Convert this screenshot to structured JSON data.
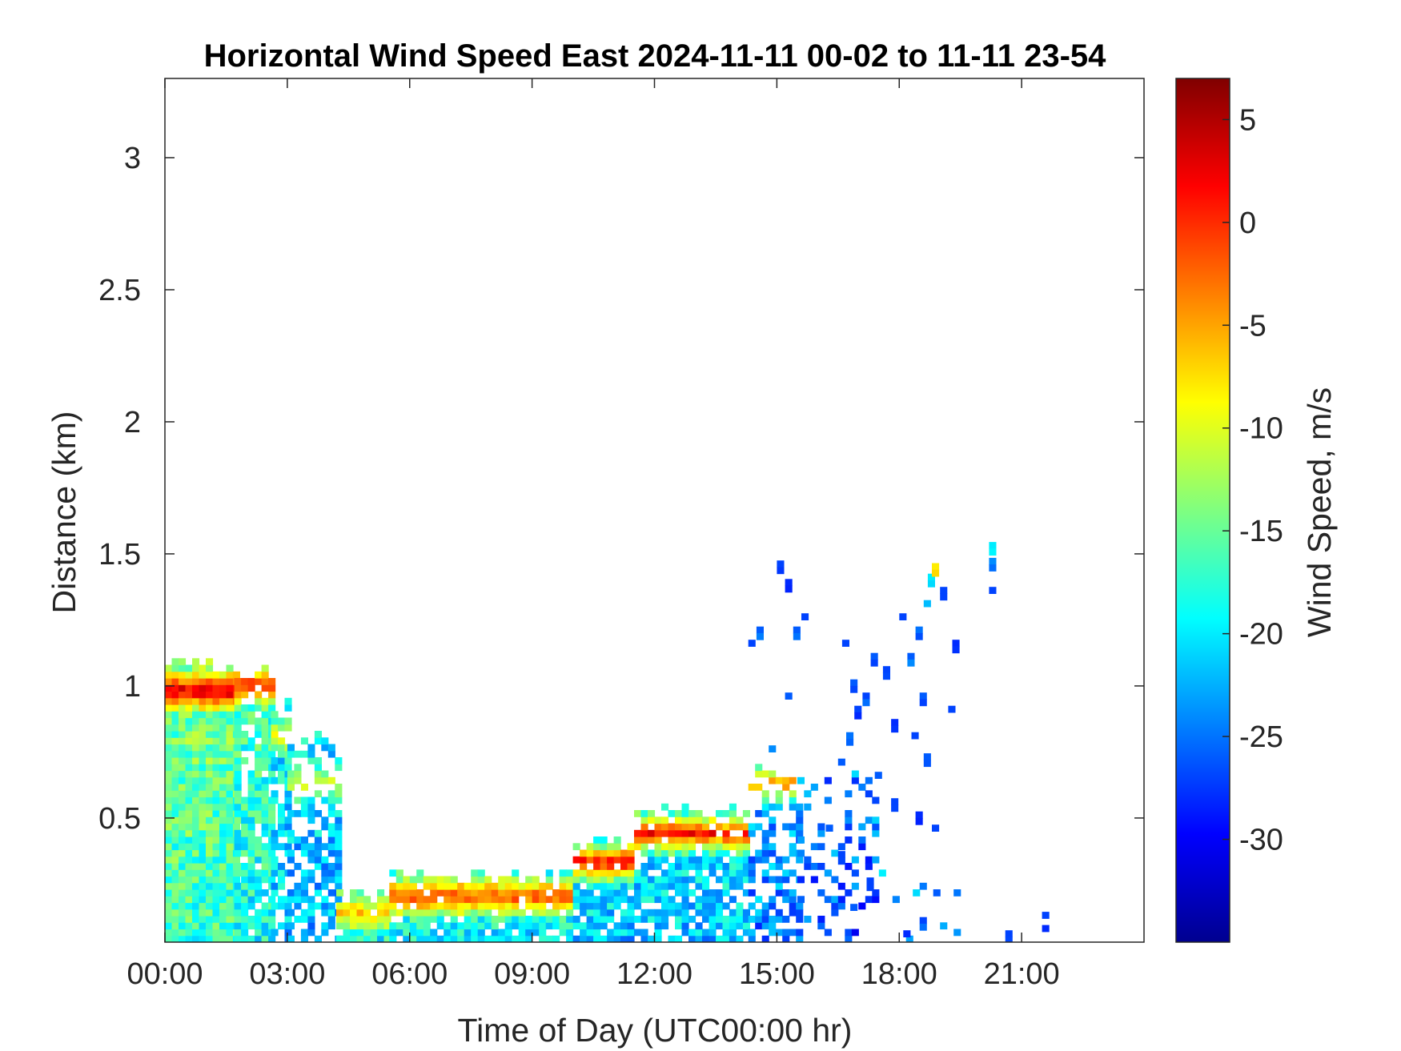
{
  "chart_data": {
    "type": "heatmap",
    "title": "Horizontal Wind Speed East 2024-11-11 00-02 to 11-11 23-54",
    "xlabel": "Time of Day (UTC00:00 hr)",
    "ylabel": "Distance (km)",
    "colorbar_label": "Wind Speed, m/s",
    "colormap": "jet",
    "x_unit": "hours UTC",
    "xlim": [
      0,
      24
    ],
    "ylim": [
      0.03,
      3.3
    ],
    "clim": [
      -35,
      7
    ],
    "x_ticks": [
      {
        "value": 0,
        "label": "00:00"
      },
      {
        "value": 3,
        "label": "03:00"
      },
      {
        "value": 6,
        "label": "06:00"
      },
      {
        "value": 9,
        "label": "09:00"
      },
      {
        "value": 12,
        "label": "12:00"
      },
      {
        "value": 15,
        "label": "15:00"
      },
      {
        "value": 18,
        "label": "18:00"
      },
      {
        "value": 21,
        "label": "21:00"
      }
    ],
    "y_ticks": [
      {
        "value": 0.5,
        "label": "0.5"
      },
      {
        "value": 1,
        "label": "1"
      },
      {
        "value": 1.5,
        "label": "1.5"
      },
      {
        "value": 2,
        "label": "2"
      },
      {
        "value": 2.5,
        "label": "2.5"
      },
      {
        "value": 3,
        "label": "3"
      }
    ],
    "colorbar_ticks": [
      {
        "value": 5,
        "label": "5"
      },
      {
        "value": 0,
        "label": "0"
      },
      {
        "value": -5,
        "label": "-5"
      },
      {
        "value": -10,
        "label": "-10"
      },
      {
        "value": -15,
        "label": "-15"
      },
      {
        "value": -20,
        "label": "-20"
      },
      {
        "value": -25,
        "label": "-25"
      },
      {
        "value": -30,
        "label": "-30"
      }
    ],
    "time_step_hours": 0.1667,
    "range_gate_km": 0.025,
    "segments": [
      {
        "x0": 0.0,
        "x1": 1.7,
        "top": 1.07,
        "base": -17,
        "jet_h": 0.97,
        "jet_v": 4,
        "sparsity": 0.0
      },
      {
        "x0": 1.7,
        "x1": 2.6,
        "top": 1.05,
        "base": -19,
        "jet_h": 0.99,
        "jet_v": 1,
        "sparsity": 0.15
      },
      {
        "x0": 2.6,
        "x1": 3.0,
        "top": 0.92,
        "base": -22,
        "jet_h": 0.8,
        "jet_v": -8,
        "sparsity": 0.3
      },
      {
        "x0": 3.0,
        "x1": 4.2,
        "top": 0.78,
        "base": -23,
        "jet_h": 0.62,
        "jet_v": -10,
        "sparsity": 0.45
      },
      {
        "x0": 4.2,
        "x1": 5.5,
        "top": 0.2,
        "base": -19,
        "jet_h": 0.13,
        "jet_v": -7,
        "sparsity": 0.05
      },
      {
        "x0": 5.5,
        "x1": 10.0,
        "top": 0.27,
        "base": -20,
        "jet_h": 0.19,
        "jet_v": -1,
        "sparsity": 0.1
      },
      {
        "x0": 10.0,
        "x1": 11.5,
        "top": 0.4,
        "base": -22,
        "jet_h": 0.32,
        "jet_v": 2,
        "sparsity": 0.15
      },
      {
        "x0": 11.5,
        "x1": 14.3,
        "top": 0.52,
        "base": -22,
        "jet_h": 0.43,
        "jet_v": 1,
        "sparsity": 0.2
      },
      {
        "x0": 14.3,
        "x1": 15.5,
        "top": 0.66,
        "base": -25,
        "jet_h": 0.62,
        "jet_v": -3,
        "sparsity": 0.45
      },
      {
        "x0": 15.5,
        "x1": 17.5,
        "top": 0.65,
        "base": -27,
        "jet_h": null,
        "jet_v": null,
        "sparsity": 0.8
      },
      {
        "x0": 17.5,
        "x1": 19.5,
        "top": 0.3,
        "base": -26,
        "jet_h": null,
        "jet_v": null,
        "sparsity": 0.95
      }
    ],
    "scattered_points": [
      {
        "x": 14.3,
        "y": 1.15,
        "v": -27
      },
      {
        "x": 14.5,
        "y": 1.2,
        "v": -26
      },
      {
        "x": 15.0,
        "y": 1.45,
        "v": -27
      },
      {
        "x": 15.2,
        "y": 1.38,
        "v": -28
      },
      {
        "x": 15.4,
        "y": 1.2,
        "v": -26
      },
      {
        "x": 15.6,
        "y": 1.25,
        "v": -27
      },
      {
        "x": 15.2,
        "y": 0.95,
        "v": -26
      },
      {
        "x": 14.8,
        "y": 0.75,
        "v": -24
      },
      {
        "x": 16.6,
        "y": 1.15,
        "v": -27
      },
      {
        "x": 16.8,
        "y": 1.0,
        "v": -26
      },
      {
        "x": 16.9,
        "y": 0.9,
        "v": -27
      },
      {
        "x": 16.7,
        "y": 0.8,
        "v": -25
      },
      {
        "x": 16.5,
        "y": 0.7,
        "v": -26
      },
      {
        "x": 17.1,
        "y": 0.95,
        "v": -27
      },
      {
        "x": 17.3,
        "y": 1.1,
        "v": -26
      },
      {
        "x": 17.6,
        "y": 1.05,
        "v": -27
      },
      {
        "x": 17.8,
        "y": 0.85,
        "v": -28
      },
      {
        "x": 18.0,
        "y": 1.25,
        "v": -27
      },
      {
        "x": 18.2,
        "y": 1.1,
        "v": -26
      },
      {
        "x": 18.4,
        "y": 1.2,
        "v": -25
      },
      {
        "x": 18.6,
        "y": 1.3,
        "v": -22
      },
      {
        "x": 18.7,
        "y": 1.4,
        "v": -20
      },
      {
        "x": 18.8,
        "y": 1.44,
        "v": -8
      },
      {
        "x": 18.5,
        "y": 0.95,
        "v": -26
      },
      {
        "x": 18.3,
        "y": 0.8,
        "v": -27
      },
      {
        "x": 18.6,
        "y": 0.72,
        "v": -26
      },
      {
        "x": 18.4,
        "y": 0.5,
        "v": -28
      },
      {
        "x": 18.8,
        "y": 0.45,
        "v": -27
      },
      {
        "x": 19.2,
        "y": 0.9,
        "v": -27
      },
      {
        "x": 19.3,
        "y": 1.15,
        "v": -28
      },
      {
        "x": 19.0,
        "y": 1.35,
        "v": -27
      },
      {
        "x": 20.2,
        "y": 1.52,
        "v": -20
      },
      {
        "x": 20.2,
        "y": 1.46,
        "v": -24
      },
      {
        "x": 20.2,
        "y": 1.35,
        "v": -27
      },
      {
        "x": 21.5,
        "y": 0.12,
        "v": -27
      },
      {
        "x": 21.5,
        "y": 0.07,
        "v": -28
      },
      {
        "x": 20.6,
        "y": 0.05,
        "v": -27
      },
      {
        "x": 18.1,
        "y": 0.05,
        "v": -28
      },
      {
        "x": 18.5,
        "y": 0.1,
        "v": -27
      },
      {
        "x": 17.2,
        "y": 0.25,
        "v": -27
      },
      {
        "x": 16.8,
        "y": 0.15,
        "v": -26
      },
      {
        "x": 16.5,
        "y": 0.35,
        "v": -27
      },
      {
        "x": 16.2,
        "y": 0.45,
        "v": -26
      },
      {
        "x": 17.8,
        "y": 0.55,
        "v": -27
      },
      {
        "x": 17.4,
        "y": 0.65,
        "v": -26
      }
    ]
  }
}
